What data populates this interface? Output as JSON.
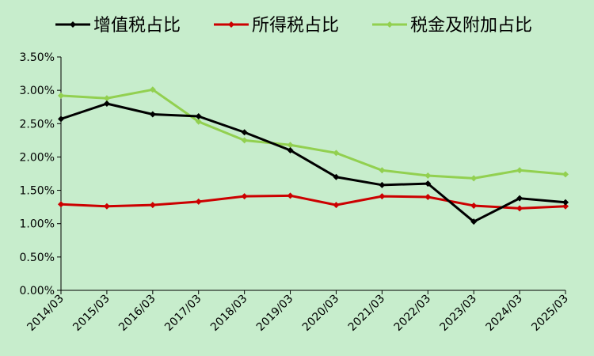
{
  "chart_data": {
    "type": "line",
    "title": "",
    "xlabel": "",
    "ylabel": "",
    "categories": [
      "2014/03",
      "2015/03",
      "2016/03",
      "2017/03",
      "2018/03",
      "2019/03",
      "2020/03",
      "2021/03",
      "2022/03",
      "2023/03",
      "2024/03",
      "2025/03"
    ],
    "ylim": [
      0,
      3.5
    ],
    "yticks": [
      "0.00%",
      "0.50%",
      "1.00%",
      "1.50%",
      "2.00%",
      "2.50%",
      "3.00%",
      "3.50%"
    ],
    "grid": false,
    "legend_position": "top",
    "series": [
      {
        "name": "增值税占比",
        "color": "#000000",
        "marker": "diamond",
        "values": [
          2.57,
          2.8,
          2.64,
          2.61,
          2.37,
          2.1,
          1.7,
          1.58,
          1.6,
          1.03,
          1.38,
          1.32
        ]
      },
      {
        "name": "所得税占比",
        "color": "#cc0000",
        "marker": "diamond",
        "values": [
          1.29,
          1.26,
          1.28,
          1.33,
          1.41,
          1.42,
          1.28,
          1.41,
          1.4,
          1.27,
          1.23,
          1.26
        ]
      },
      {
        "name": "税金及附加占比",
        "color": "#92d050",
        "marker": "diamond",
        "values": [
          2.92,
          2.88,
          3.01,
          2.53,
          2.25,
          2.18,
          2.06,
          1.8,
          1.72,
          1.68,
          1.8,
          1.74
        ]
      }
    ]
  }
}
